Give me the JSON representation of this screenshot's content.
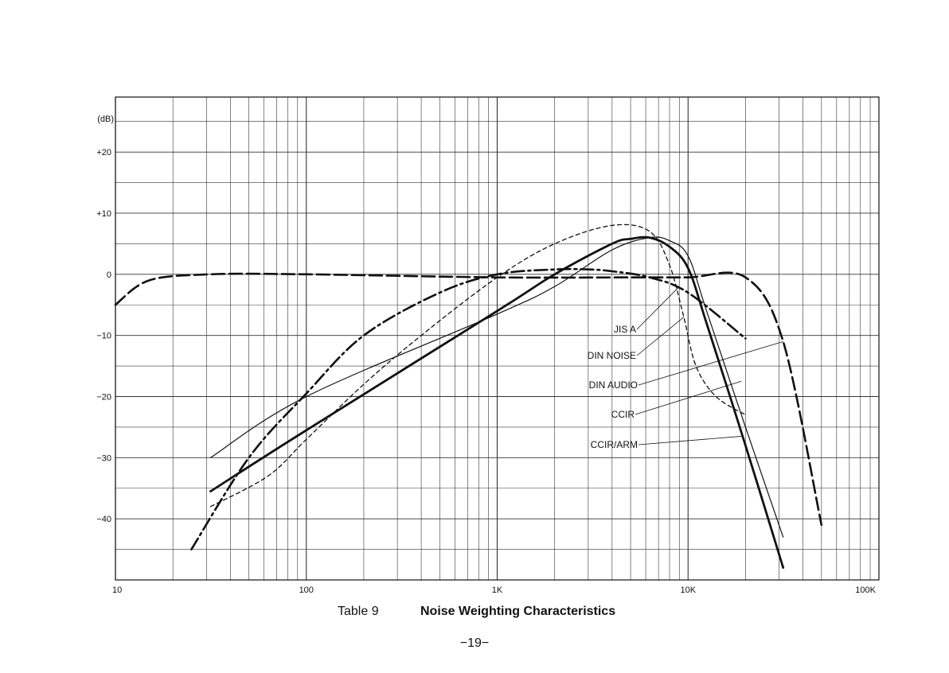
{
  "caption": {
    "table_number": "Table  9",
    "title": "Noise Weighting Characteristics"
  },
  "page_number": "−19−",
  "chart_data": {
    "type": "line",
    "title": "",
    "xlabel": "",
    "ylabel": "(dB)",
    "x_scale": "log",
    "xlim": [
      10,
      100000
    ],
    "ylim": [
      -50,
      29
    ],
    "x_tick_labels": [
      {
        "value": 10,
        "label": "10"
      },
      {
        "value": 100,
        "label": "100"
      },
      {
        "value": 1000,
        "label": "1K"
      },
      {
        "value": 10000,
        "label": "10K"
      },
      {
        "value": 100000,
        "label": "100K"
      }
    ],
    "y_tick_labels": [
      {
        "value": 20,
        "label": "+20"
      },
      {
        "value": 10,
        "label": "+10"
      },
      {
        "value": 0,
        "label": "0"
      },
      {
        "value": -10,
        "label": "−10"
      },
      {
        "value": -20,
        "label": "−20"
      },
      {
        "value": -30,
        "label": "−30"
      },
      {
        "value": -40,
        "label": "−40"
      }
    ],
    "grid": true,
    "series": [
      {
        "name": "JIS A",
        "style": "thin-solid",
        "x": [
          31.5,
          100,
          1000,
          2000,
          4000,
          6300,
          8000,
          10000,
          12500,
          20000,
          31500
        ],
        "y": [
          -30,
          -20,
          -6.5,
          -2,
          4,
          6,
          5.5,
          3,
          -6,
          -25,
          -43
        ]
      },
      {
        "name": "DIN NOISE",
        "style": "dashed",
        "x": [
          31.5,
          63,
          100,
          200,
          400,
          1000,
          2000,
          4000,
          6300,
          8000,
          9500,
          11000,
          14000,
          20000
        ],
        "y": [
          -38,
          -33,
          -27,
          -18,
          -10,
          -0.5,
          5,
          8,
          7,
          1.5,
          -7,
          -15,
          -20,
          -23
        ]
      },
      {
        "name": "DIN AUDIO",
        "style": "long-dash",
        "x": [
          10,
          15,
          31.5,
          100,
          1000,
          5000,
          10000,
          20000,
          31500,
          50000
        ],
        "y": [
          -5,
          -1,
          0,
          0,
          -0.5,
          -0.5,
          -0.5,
          -0.5,
          -11,
          -41
        ]
      },
      {
        "name": "CCIR",
        "style": "thick-solid",
        "x": [
          31.5,
          100,
          1000,
          2000,
          4000,
          5000,
          6300,
          8000,
          10000,
          12500,
          20000,
          31500
        ],
        "y": [
          -35.5,
          -25.5,
          -6,
          0,
          5,
          5.8,
          6,
          4.5,
          1,
          -8,
          -28,
          -48
        ]
      },
      {
        "name": "CCIR/ARM",
        "style": "dash-dot",
        "x": [
          25,
          50,
          100,
          200,
          500,
          1000,
          2000,
          3000,
          4000,
          6300,
          10000,
          20000
        ],
        "y": [
          -45,
          -30,
          -19.5,
          -10,
          -3,
          0,
          0.8,
          0.8,
          0.5,
          -0.5,
          -3,
          -10.5
        ]
      }
    ],
    "annotations": [
      {
        "text": "JIS A",
        "target_series": "JIS A",
        "target": {
          "x": 9000,
          "y": -2
        }
      },
      {
        "text": "DIN NOISE",
        "target_series": "DIN NOISE",
        "target": {
          "x": 9500,
          "y": -7
        }
      },
      {
        "text": "DIN AUDIO",
        "target_series": "DIN AUDIO",
        "target": {
          "x": 31500,
          "y": -11
        }
      },
      {
        "text": "CCIR",
        "target_series": "CCIR",
        "target": {
          "x": 19000,
          "y": -17.5
        }
      },
      {
        "text": "CCIR/ARM",
        "target_series": "CCIR/ARM",
        "target": {
          "x": 19000,
          "y": -26.5
        }
      }
    ]
  }
}
